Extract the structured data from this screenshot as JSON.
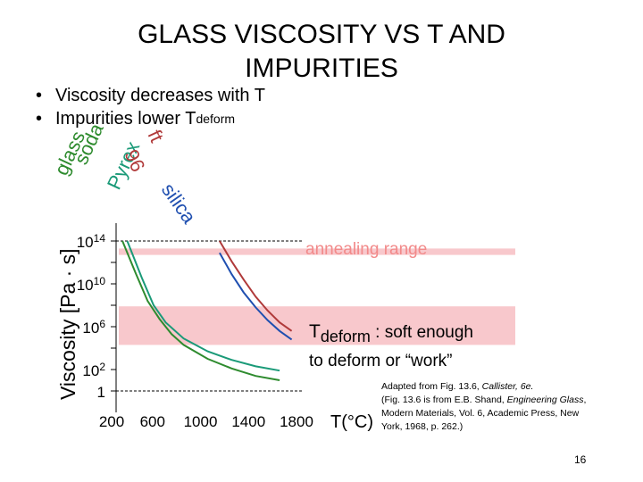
{
  "slide": {
    "title_line1": "GLASS VISCOSITY VS T AND",
    "title_line2": "IMPURITIES",
    "bullets": [
      {
        "text": "Viscosity decreases with T",
        "sub": ""
      },
      {
        "text": "Impurities lower T",
        "sub": "deform"
      }
    ],
    "bullet_glyph": "•",
    "caption": {
      "line1_pre": "Adapted from Fig. 13.6, ",
      "line1_italic": "Callister, 6e.",
      "line2_pre": "(Fig. 13.6 is from E.B. Shand, ",
      "line2_italic": "Engineering Glass",
      "line2_post": ", Modern Materials, Vol. 6, Academic Press, New York, 1968, p. 262.)"
    },
    "page_number": "16"
  },
  "chart_data": {
    "type": "line",
    "xlabel": "T(°C)",
    "ylabel": "Viscosity [Pa · s]",
    "x_ticks": [
      "200",
      "600",
      "1000",
      "1400",
      "1800"
    ],
    "y_ticks": [
      {
        "label": "1",
        "exp": ""
      },
      {
        "label": "10",
        "exp": "2"
      },
      {
        "label": "10",
        "exp": "6"
      },
      {
        "label": "10",
        "exp": "10"
      },
      {
        "label": "10",
        "exp": "14"
      }
    ],
    "xlim": [
      200,
      1800
    ],
    "ylim_log10": [
      0,
      14
    ],
    "series": [
      {
        "name": "soda lime glass",
        "label_line1": "glass",
        "label_line2": "soda",
        "color": "#2e8b2e",
        "x": [
          290,
          400,
          500,
          600,
          700,
          800,
          1000,
          1200,
          1400,
          1600
        ],
        "log10_y": [
          14,
          11,
          8.4,
          6.7,
          5.3,
          4.3,
          3.0,
          2.1,
          1.4,
          1.0
        ]
      },
      {
        "name": "borosilicate (Pyrex)",
        "label_line1": "Pyrex",
        "label_line2": "",
        "color": "#1a9a78",
        "x": [
          330,
          450,
          550,
          650,
          800,
          1000,
          1200,
          1400,
          1600
        ],
        "log10_y": [
          14,
          10.6,
          8.0,
          6.4,
          4.9,
          3.7,
          2.9,
          2.3,
          1.9
        ]
      },
      {
        "name": "96% silica",
        "label_line1": "96",
        "label_line2": "ft",
        "color": "#b03a3a",
        "x": [
          1100,
          1200,
          1300,
          1400,
          1500,
          1600,
          1700
        ],
        "log10_y": [
          14,
          12.1,
          10.4,
          8.8,
          7.5,
          6.4,
          5.6
        ]
      },
      {
        "name": "fused silica",
        "label_line1": "silica",
        "label_line2": "",
        "color": "#1f4fb0",
        "x": [
          1100,
          1200,
          1300,
          1400,
          1500,
          1600,
          1700
        ],
        "log10_y": [
          12.9,
          10.9,
          9.2,
          7.8,
          6.6,
          5.6,
          4.8
        ]
      }
    ],
    "annotations": {
      "annealing_label": "annealing  range",
      "deform_T": "T",
      "deform_sub": "deform",
      "deform_rest": " :  soft enough",
      "deform_line2": "to deform or “work”"
    },
    "colors": {
      "band": "#f8c8cc",
      "annealing_text": "#f28a8a",
      "dashed": "#000000"
    }
  }
}
